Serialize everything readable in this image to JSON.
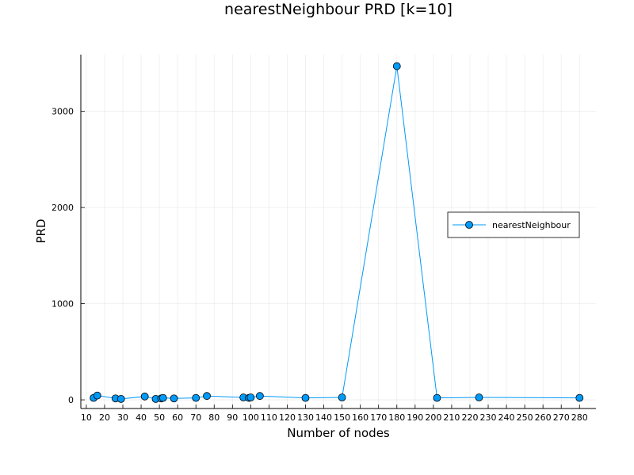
{
  "chart_data": {
    "type": "line",
    "title": "nearestNeighbour PRD [k=10]",
    "xlabel": "Number of nodes",
    "ylabel": "PRD",
    "xlim": [
      7,
      289
    ],
    "ylim": [
      -90,
      3590
    ],
    "x_ticks": [
      10,
      20,
      30,
      40,
      50,
      60,
      70,
      80,
      90,
      100,
      110,
      120,
      130,
      140,
      150,
      160,
      170,
      180,
      190,
      200,
      210,
      220,
      230,
      240,
      250,
      260,
      270,
      280
    ],
    "y_ticks": [
      0,
      1000,
      2000,
      3000
    ],
    "grid": true,
    "legend_position": "right",
    "series": [
      {
        "name": "nearestNeighbour",
        "color": "#009af9",
        "marker": "circle",
        "x": [
          14,
          16,
          26,
          29,
          42,
          48,
          51,
          52,
          58,
          70,
          76,
          96,
          99,
          100,
          105,
          130,
          150,
          180,
          202,
          225,
          280
        ],
        "y": [
          20,
          45,
          15,
          10,
          35,
          10,
          15,
          20,
          15,
          20,
          40,
          25,
          20,
          25,
          40,
          20,
          25,
          3470,
          20,
          25,
          20
        ]
      }
    ]
  }
}
